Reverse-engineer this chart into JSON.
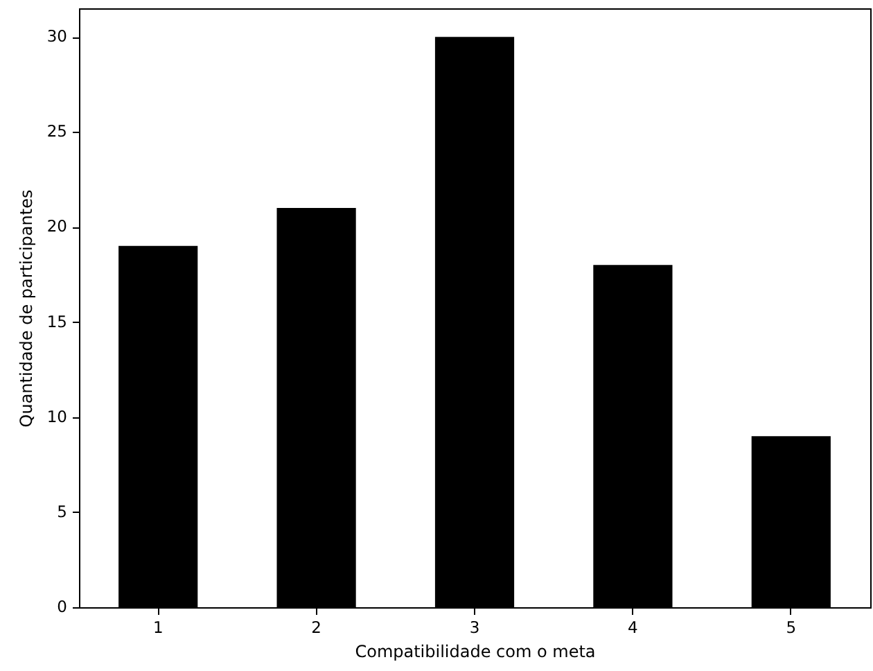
{
  "chart_data": {
    "type": "bar",
    "xlabel": "Compatibilidade com o meta",
    "ylabel": "Quantidade de participantes",
    "categories": [
      "1",
      "2",
      "3",
      "4",
      "5"
    ],
    "values": [
      19,
      21,
      30,
      18,
      9
    ],
    "color": "#000000",
    "ylim": [
      0,
      31.5
    ],
    "yticks": [
      0,
      5,
      10,
      15,
      20,
      25,
      30
    ],
    "grid": false
  }
}
